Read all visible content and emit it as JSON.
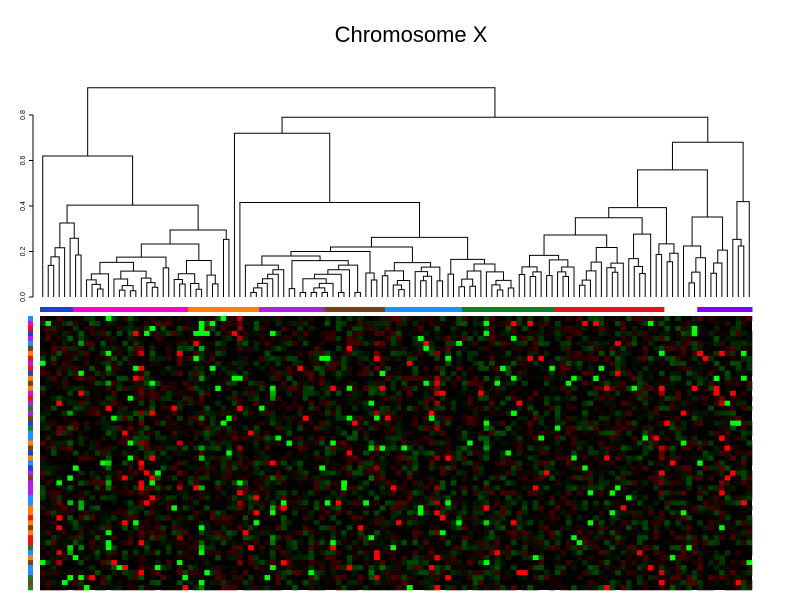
{
  "chart_data": {
    "type": "heatmap",
    "title": "Chromosome X",
    "dendrogram": {
      "axis_ticks": [
        "0.0",
        "0.2",
        "0.4",
        "0.6",
        "0.8"
      ],
      "ylim": [
        0,
        0.8
      ],
      "leaf_count": 130
    },
    "column_groups": [
      {
        "color": "#1f3fd6",
        "count": 6
      },
      {
        "color": "#ff00cc",
        "count": 21
      },
      {
        "color": "#ff7f00",
        "count": 13
      },
      {
        "color": "#b020e0",
        "count": 12
      },
      {
        "color": "#7a4010",
        "count": 11
      },
      {
        "color": "#1e90ff",
        "count": 14
      },
      {
        "color": "#108020",
        "count": 17
      },
      {
        "color": "#ee1111",
        "count": 20
      },
      {
        "color": "#ffffff",
        "count": 6
      },
      {
        "color": "#7f00ff",
        "count": 10
      }
    ],
    "row_count": 55,
    "row_colors": [
      "#ff7f00",
      "#1e90ff",
      "#ff00cc",
      "#b020e0",
      "#108020",
      "#1f3fd6",
      "#7a4010",
      "#ee1111"
    ],
    "color_scale": {
      "low": "#00ff00",
      "mid": "#000000",
      "high": "#ff0000"
    }
  }
}
